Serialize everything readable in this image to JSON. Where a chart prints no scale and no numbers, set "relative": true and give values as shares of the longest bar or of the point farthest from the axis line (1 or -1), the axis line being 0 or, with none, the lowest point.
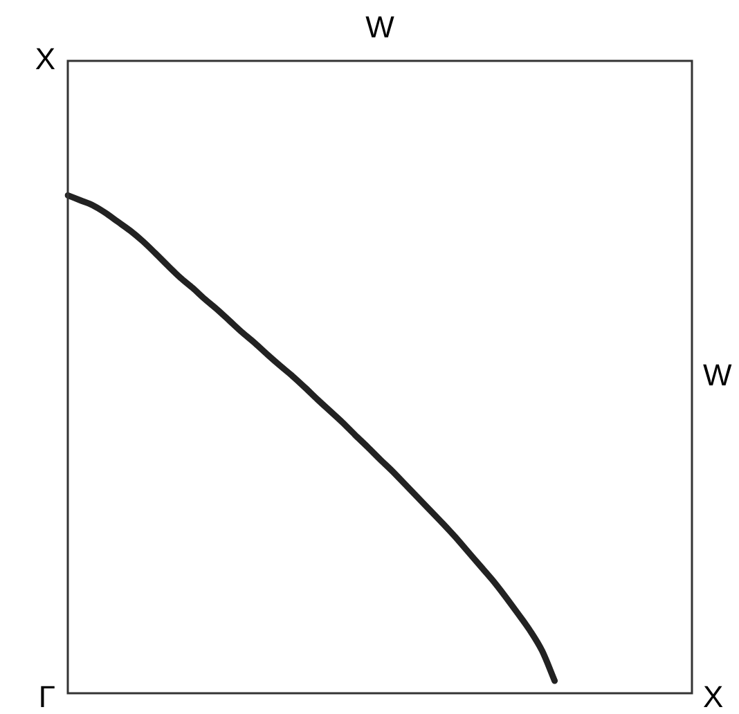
{
  "chart_data": {
    "type": "line",
    "relative": true,
    "categories": [
      null,
      null,
      null,
      null,
      null,
      null,
      null,
      null,
      null,
      null,
      null,
      null,
      null,
      null,
      null,
      null,
      null,
      null,
      null,
      null,
      null,
      null,
      null,
      null,
      null,
      null,
      null,
      null,
      null,
      null,
      null,
      null,
      null,
      null,
      null,
      null,
      null,
      null,
      null,
      null,
      null,
      null,
      null,
      null,
      null,
      null,
      null,
      null,
      null,
      null,
      null
    ],
    "series": [
      {
        "color": "#222222",
        "values": [
          1.0,
          0.99,
          0.98,
          0.965,
          0.947,
          0.929,
          0.908,
          0.884,
          0.859,
          0.835,
          0.814,
          0.791,
          0.77,
          0.747,
          0.724,
          0.703,
          0.68,
          0.658,
          0.637,
          0.614,
          0.59,
          0.567,
          0.544,
          0.519,
          0.495,
          0.47,
          0.446,
          0.42,
          0.394,
          0.368,
          0.342,
          0.315,
          0.286,
          0.257,
          0.228,
          0.196,
          0.162,
          0.127,
          0.085,
          0.025,
          null,
          null,
          null,
          null,
          null,
          null,
          null,
          null,
          null,
          null,
          null
        ]
      }
    ],
    "annotations": [
      "W",
      "X",
      "W",
      "Γ",
      "X"
    ]
  }
}
